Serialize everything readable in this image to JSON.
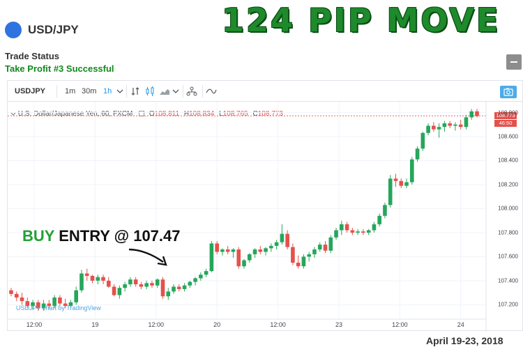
{
  "header": {
    "pair": "USD/JPY"
  },
  "headline": "124 PIP MOVE",
  "trade_status": {
    "label": "Trade Status",
    "value": "Take Profit #3 Successful"
  },
  "toolbar": {
    "symbol": "USDJPY",
    "intervals": [
      "1m",
      "30m",
      "1h"
    ],
    "active_interval": "1h",
    "icons": [
      "chevron-down-icon",
      "compare-icon",
      "candles-icon",
      "area-chart-icon",
      "chevron-down-icon",
      "indicators-icon",
      "drawing-icon",
      "snapshot-icon"
    ]
  },
  "legend": {
    "instrument": "U.S. Dollar/Japanese Yen, 60, FXCM",
    "open_label": "O",
    "open": "108.811",
    "high_label": "H",
    "high": "108.834",
    "low_label": "L",
    "low": "108.765",
    "close_label": "C",
    "close": "108.773"
  },
  "watermark": "USDJPY chart by TradingView",
  "last_price_tag": "108.773",
  "countdown_tag": "46:50",
  "annotation": {
    "buy": "BUY",
    "rest": "ENTRY @ 107.47"
  },
  "date_range": "April 19-23, 2018",
  "colors": {
    "up": "#26a65b",
    "down": "#e4514b",
    "headline": "#1e8a2c",
    "accent": "#2196f3"
  },
  "chart_data": {
    "type": "candlestick",
    "x_tick_labels": [
      "12:00",
      "19",
      "12:00",
      "20",
      "12:00",
      "23",
      "12:00",
      "24"
    ],
    "y_tick_labels": [
      "108.800",
      "108.600",
      "108.400",
      "108.200",
      "108.000",
      "107.800",
      "107.600",
      "107.400",
      "107.200"
    ],
    "ylim": [
      107.08,
      108.89
    ],
    "grid": true,
    "candles": [
      [
        107.32,
        107.34,
        107.27,
        107.29
      ],
      [
        107.29,
        107.31,
        107.23,
        107.26
      ],
      [
        107.26,
        107.3,
        107.2,
        107.23
      ],
      [
        107.23,
        107.26,
        107.17,
        107.19
      ],
      [
        107.19,
        107.24,
        107.16,
        107.22
      ],
      [
        107.22,
        107.24,
        107.15,
        107.17
      ],
      [
        107.17,
        107.24,
        107.15,
        107.21
      ],
      [
        107.21,
        107.24,
        107.17,
        107.19
      ],
      [
        107.19,
        107.28,
        107.17,
        107.26
      ],
      [
        107.26,
        107.28,
        107.19,
        107.21
      ],
      [
        107.21,
        107.25,
        107.17,
        107.19
      ],
      [
        107.19,
        107.24,
        107.17,
        107.22
      ],
      [
        107.22,
        107.35,
        107.2,
        107.32
      ],
      [
        107.32,
        107.49,
        107.3,
        107.46
      ],
      [
        107.46,
        107.5,
        107.4,
        107.44
      ],
      [
        107.44,
        107.45,
        107.38,
        107.4
      ],
      [
        107.4,
        107.45,
        107.37,
        107.43
      ],
      [
        107.43,
        107.45,
        107.37,
        107.4
      ],
      [
        107.4,
        107.43,
        107.34,
        107.35
      ],
      [
        107.35,
        107.37,
        107.27,
        107.28
      ],
      [
        107.28,
        107.36,
        107.25,
        107.34
      ],
      [
        107.34,
        107.39,
        107.31,
        107.37
      ],
      [
        107.37,
        107.43,
        107.35,
        107.41
      ],
      [
        107.41,
        107.43,
        107.35,
        107.37
      ],
      [
        107.37,
        107.39,
        107.33,
        107.35
      ],
      [
        107.35,
        107.4,
        107.33,
        107.38
      ],
      [
        107.38,
        107.4,
        107.34,
        107.36
      ],
      [
        107.36,
        107.42,
        107.34,
        107.41
      ],
      [
        107.41,
        107.43,
        107.25,
        107.27
      ],
      [
        107.27,
        107.34,
        107.24,
        107.31
      ],
      [
        107.31,
        107.37,
        107.29,
        107.35
      ],
      [
        107.35,
        107.37,
        107.31,
        107.33
      ],
      [
        107.33,
        107.38,
        107.31,
        107.36
      ],
      [
        107.36,
        107.4,
        107.34,
        107.39
      ],
      [
        107.39,
        107.43,
        107.36,
        107.42
      ],
      [
        107.42,
        107.47,
        107.4,
        107.45
      ],
      [
        107.45,
        107.5,
        107.43,
        107.48
      ],
      [
        107.48,
        107.73,
        107.47,
        107.71
      ],
      [
        107.71,
        107.73,
        107.62,
        107.64
      ],
      [
        107.64,
        107.67,
        107.61,
        107.66
      ],
      [
        107.66,
        107.69,
        107.62,
        107.64
      ],
      [
        107.64,
        107.67,
        107.59,
        107.66
      ],
      [
        107.66,
        107.68,
        107.5,
        107.52
      ],
      [
        107.52,
        107.58,
        107.5,
        107.57
      ],
      [
        107.57,
        107.63,
        107.55,
        107.62
      ],
      [
        107.62,
        107.67,
        107.59,
        107.66
      ],
      [
        107.66,
        107.69,
        107.62,
        107.64
      ],
      [
        107.64,
        107.68,
        107.61,
        107.67
      ],
      [
        107.67,
        107.71,
        107.64,
        107.69
      ],
      [
        107.69,
        107.74,
        107.66,
        107.72
      ],
      [
        107.72,
        107.87,
        107.7,
        107.79
      ],
      [
        107.79,
        107.82,
        107.66,
        107.68
      ],
      [
        107.68,
        107.71,
        107.53,
        107.55
      ],
      [
        107.55,
        107.61,
        107.5,
        107.52
      ],
      [
        107.52,
        107.62,
        107.5,
        107.6
      ],
      [
        107.6,
        107.64,
        107.56,
        107.62
      ],
      [
        107.62,
        107.68,
        107.59,
        107.66
      ],
      [
        107.66,
        107.72,
        107.64,
        107.7
      ],
      [
        107.7,
        107.73,
        107.63,
        107.65
      ],
      [
        107.65,
        107.78,
        107.63,
        107.76
      ],
      [
        107.76,
        107.84,
        107.74,
        107.82
      ],
      [
        107.82,
        107.9,
        107.78,
        107.87
      ],
      [
        107.87,
        107.89,
        107.8,
        107.82
      ],
      [
        107.82,
        107.84,
        107.78,
        107.8
      ],
      [
        107.8,
        107.83,
        107.78,
        107.81
      ],
      [
        107.81,
        107.83,
        107.78,
        107.8
      ],
      [
        107.8,
        107.83,
        107.78,
        107.82
      ],
      [
        107.82,
        107.89,
        107.8,
        107.87
      ],
      [
        107.87,
        107.96,
        107.85,
        107.94
      ],
      [
        107.94,
        108.05,
        107.92,
        108.03
      ],
      [
        108.03,
        108.28,
        108.01,
        108.25
      ],
      [
        108.25,
        108.29,
        108.18,
        108.23
      ],
      [
        108.23,
        108.25,
        108.17,
        108.19
      ],
      [
        108.19,
        108.25,
        108.17,
        108.22
      ],
      [
        108.22,
        108.43,
        108.2,
        108.41
      ],
      [
        108.41,
        108.52,
        108.39,
        108.5
      ],
      [
        108.5,
        108.64,
        108.48,
        108.63
      ],
      [
        108.63,
        108.71,
        108.61,
        108.69
      ],
      [
        108.69,
        108.72,
        108.64,
        108.66
      ],
      [
        108.66,
        108.71,
        108.59,
        108.68
      ],
      [
        108.68,
        108.73,
        108.64,
        108.71
      ],
      [
        108.71,
        108.73,
        108.67,
        108.69
      ],
      [
        108.69,
        108.72,
        108.65,
        108.7
      ],
      [
        108.7,
        108.74,
        108.66,
        108.68
      ],
      [
        108.68,
        108.78,
        108.66,
        108.76
      ],
      [
        108.76,
        108.83,
        108.74,
        108.81
      ],
      [
        108.81,
        108.83,
        108.76,
        108.77
      ]
    ]
  }
}
